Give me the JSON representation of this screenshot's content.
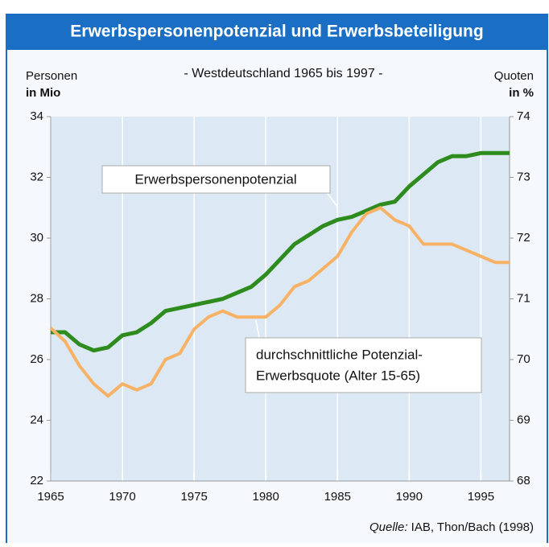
{
  "chart_data": {
    "type": "line",
    "title": "Erwerbspersonenpotenzial und Erwerbsbeteiligung",
    "subtitle": "- Westdeutschland 1965 bis 1997 -",
    "y_label": [
      "Personen",
      "in Mio"
    ],
    "y2_label": [
      "Quoten",
      "in %"
    ],
    "source": {
      "prefix": "Quelle:",
      "text": " IAB, Thon/Bach (1998)"
    },
    "x": [
      1965,
      1966,
      1967,
      1968,
      1969,
      1970,
      1971,
      1972,
      1973,
      1974,
      1975,
      1976,
      1977,
      1978,
      1979,
      1980,
      1981,
      1982,
      1983,
      1984,
      1985,
      1986,
      1987,
      1988,
      1989,
      1990,
      1991,
      1992,
      1993,
      1994,
      1995,
      1996,
      1997
    ],
    "xlim": [
      1965,
      1997
    ],
    "xticks": [
      1965,
      1970,
      1975,
      1980,
      1985,
      1990,
      1995
    ],
    "ylim": [
      22,
      34
    ],
    "yticks": [
      22,
      24,
      26,
      28,
      30,
      32,
      34
    ],
    "y2lim": [
      68,
      74
    ],
    "y2ticks": [
      68,
      69,
      70,
      71,
      72,
      73,
      74
    ],
    "grid": true,
    "series": [
      {
        "name": "Erwerbspersonenpotenzial",
        "color": "#2e8b1e",
        "axis": "y",
        "values": [
          26.9,
          26.9,
          26.5,
          26.3,
          26.4,
          26.8,
          26.9,
          27.2,
          27.6,
          27.7,
          27.8,
          27.9,
          28.0,
          28.2,
          28.4,
          28.8,
          29.3,
          29.8,
          30.1,
          30.4,
          30.6,
          30.7,
          30.9,
          31.1,
          31.2,
          31.7,
          32.1,
          32.5,
          32.7,
          32.7,
          32.8,
          32.8,
          32.8
        ]
      },
      {
        "name": "durchschnittliche Potenzial-Erwerbsquote (Alter 15-65)",
        "color": "#f7b266",
        "axis": "y2",
        "values": [
          70.52,
          70.3,
          69.9,
          69.6,
          69.4,
          69.6,
          69.5,
          69.6,
          70.0,
          70.1,
          70.5,
          70.7,
          70.8,
          70.7,
          70.7,
          70.7,
          70.9,
          71.2,
          71.3,
          71.5,
          71.7,
          72.1,
          72.4,
          72.5,
          72.3,
          72.2,
          71.9,
          71.9,
          71.9,
          71.8,
          71.7,
          71.6,
          71.6
        ]
      }
    ],
    "annotations": [
      [
        "Erwerbspersonenpotenzial"
      ],
      [
        "durchschnittliche Potenzial-",
        "Erwerbsquote (Alter 15-65)"
      ]
    ]
  }
}
